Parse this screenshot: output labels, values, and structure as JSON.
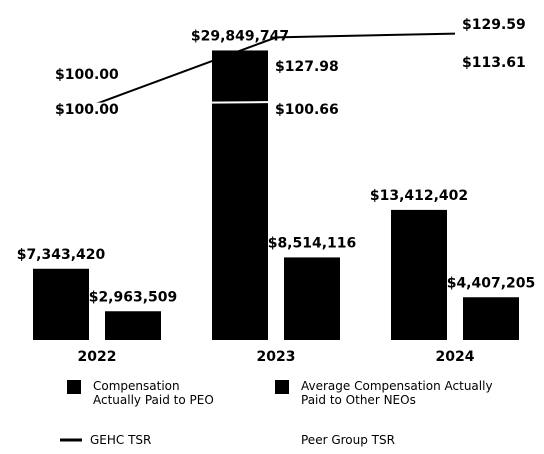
{
  "chart_data": {
    "type": "bar",
    "categories": [
      "2022",
      "2023",
      "2024"
    ],
    "series": [
      {
        "name": "Compensation Actually Paid to PEO",
        "color": "#000000",
        "values": [
          7343420,
          29849747,
          13412402
        ],
        "value_labels": [
          "$7,343,420",
          "$29,849,747",
          "$13,412,402"
        ]
      },
      {
        "name": "Average Compensation Actually Paid to Other NEOs",
        "color": "#000000",
        "values": [
          2963509,
          8514116,
          4407205
        ],
        "value_labels": [
          "$2,963,509",
          "$8,514,116",
          "$4,407,205"
        ]
      },
      {
        "name": "GEHC TSR",
        "color": "#000000",
        "type": "line",
        "axis": "y2",
        "values": [
          100.0,
          127.98,
          129.59
        ],
        "value_labels": [
          "$100.00",
          "$127.98",
          "$129.59"
        ]
      },
      {
        "name": "Peer Group TSR",
        "color": "#ffffff",
        "type": "line",
        "axis": "y2",
        "values": [
          100.0,
          100.66,
          113.61
        ],
        "value_labels": [
          "$100.00",
          "$100.66",
          "$113.61"
        ]
      }
    ],
    "ylim": [
      0,
      30000000
    ],
    "y2lim": [
      0,
      140
    ],
    "grid": false
  }
}
